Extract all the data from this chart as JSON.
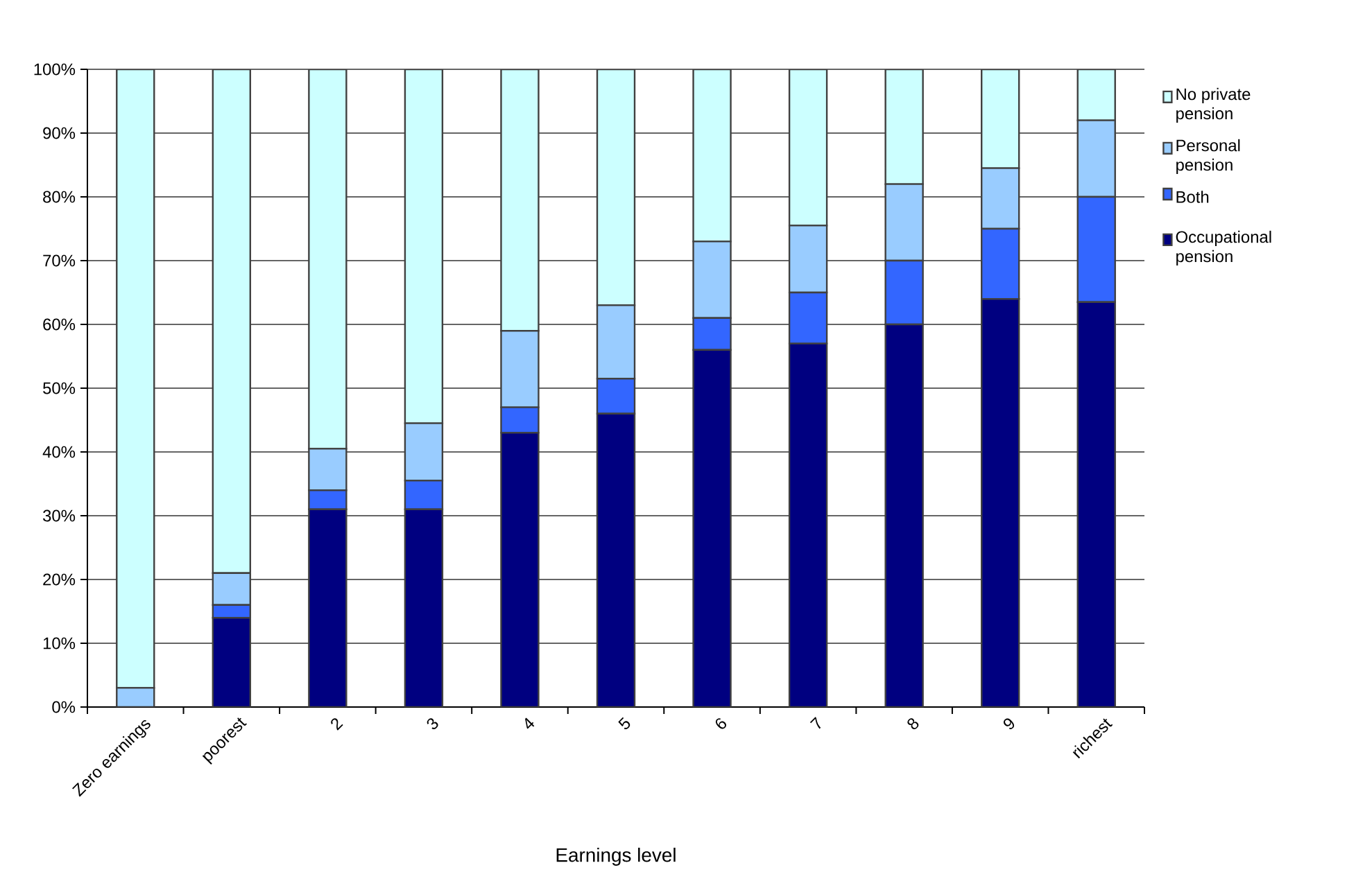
{
  "chart_data": {
    "type": "bar",
    "stacked": true,
    "xlabel": "Earnings level",
    "categories": [
      "Zero earnings",
      "poorest",
      "2",
      "3",
      "4",
      "5",
      "6",
      "7",
      "8",
      "9",
      "richest"
    ],
    "series": [
      {
        "name": "Occupational pension",
        "color": "#000080",
        "values": [
          0,
          14,
          31,
          31,
          43,
          46,
          56,
          57,
          60,
          64,
          63.5
        ]
      },
      {
        "name": "Both",
        "color": "#3366ff",
        "values": [
          0,
          2,
          3,
          4.5,
          4,
          5.5,
          5,
          8,
          10,
          11,
          16.5
        ]
      },
      {
        "name": "Personal pension",
        "color": "#99ccff",
        "values": [
          3,
          5,
          6.5,
          9,
          12,
          11.5,
          12,
          10.5,
          12,
          9.5,
          12
        ]
      },
      {
        "name": "No private pension",
        "color": "#ccffff",
        "values": [
          97,
          79,
          59.5,
          55.5,
          41,
          37,
          27,
          24.5,
          18,
          15.5,
          8
        ]
      }
    ],
    "ylim": [
      0,
      100
    ],
    "yticks": [
      {
        "value": 0,
        "label": "0%"
      },
      {
        "value": 10,
        "label": "10%"
      },
      {
        "value": 20,
        "label": "20%"
      },
      {
        "value": 30,
        "label": "30%"
      },
      {
        "value": 40,
        "label": "40%"
      },
      {
        "value": 50,
        "label": "50%"
      },
      {
        "value": 60,
        "label": "60%"
      },
      {
        "value": 70,
        "label": "70%"
      },
      {
        "value": 80,
        "label": "80%"
      },
      {
        "value": 90,
        "label": "90%"
      },
      {
        "value": 100,
        "label": "100%"
      }
    ],
    "grid": "y",
    "legend": "right"
  }
}
